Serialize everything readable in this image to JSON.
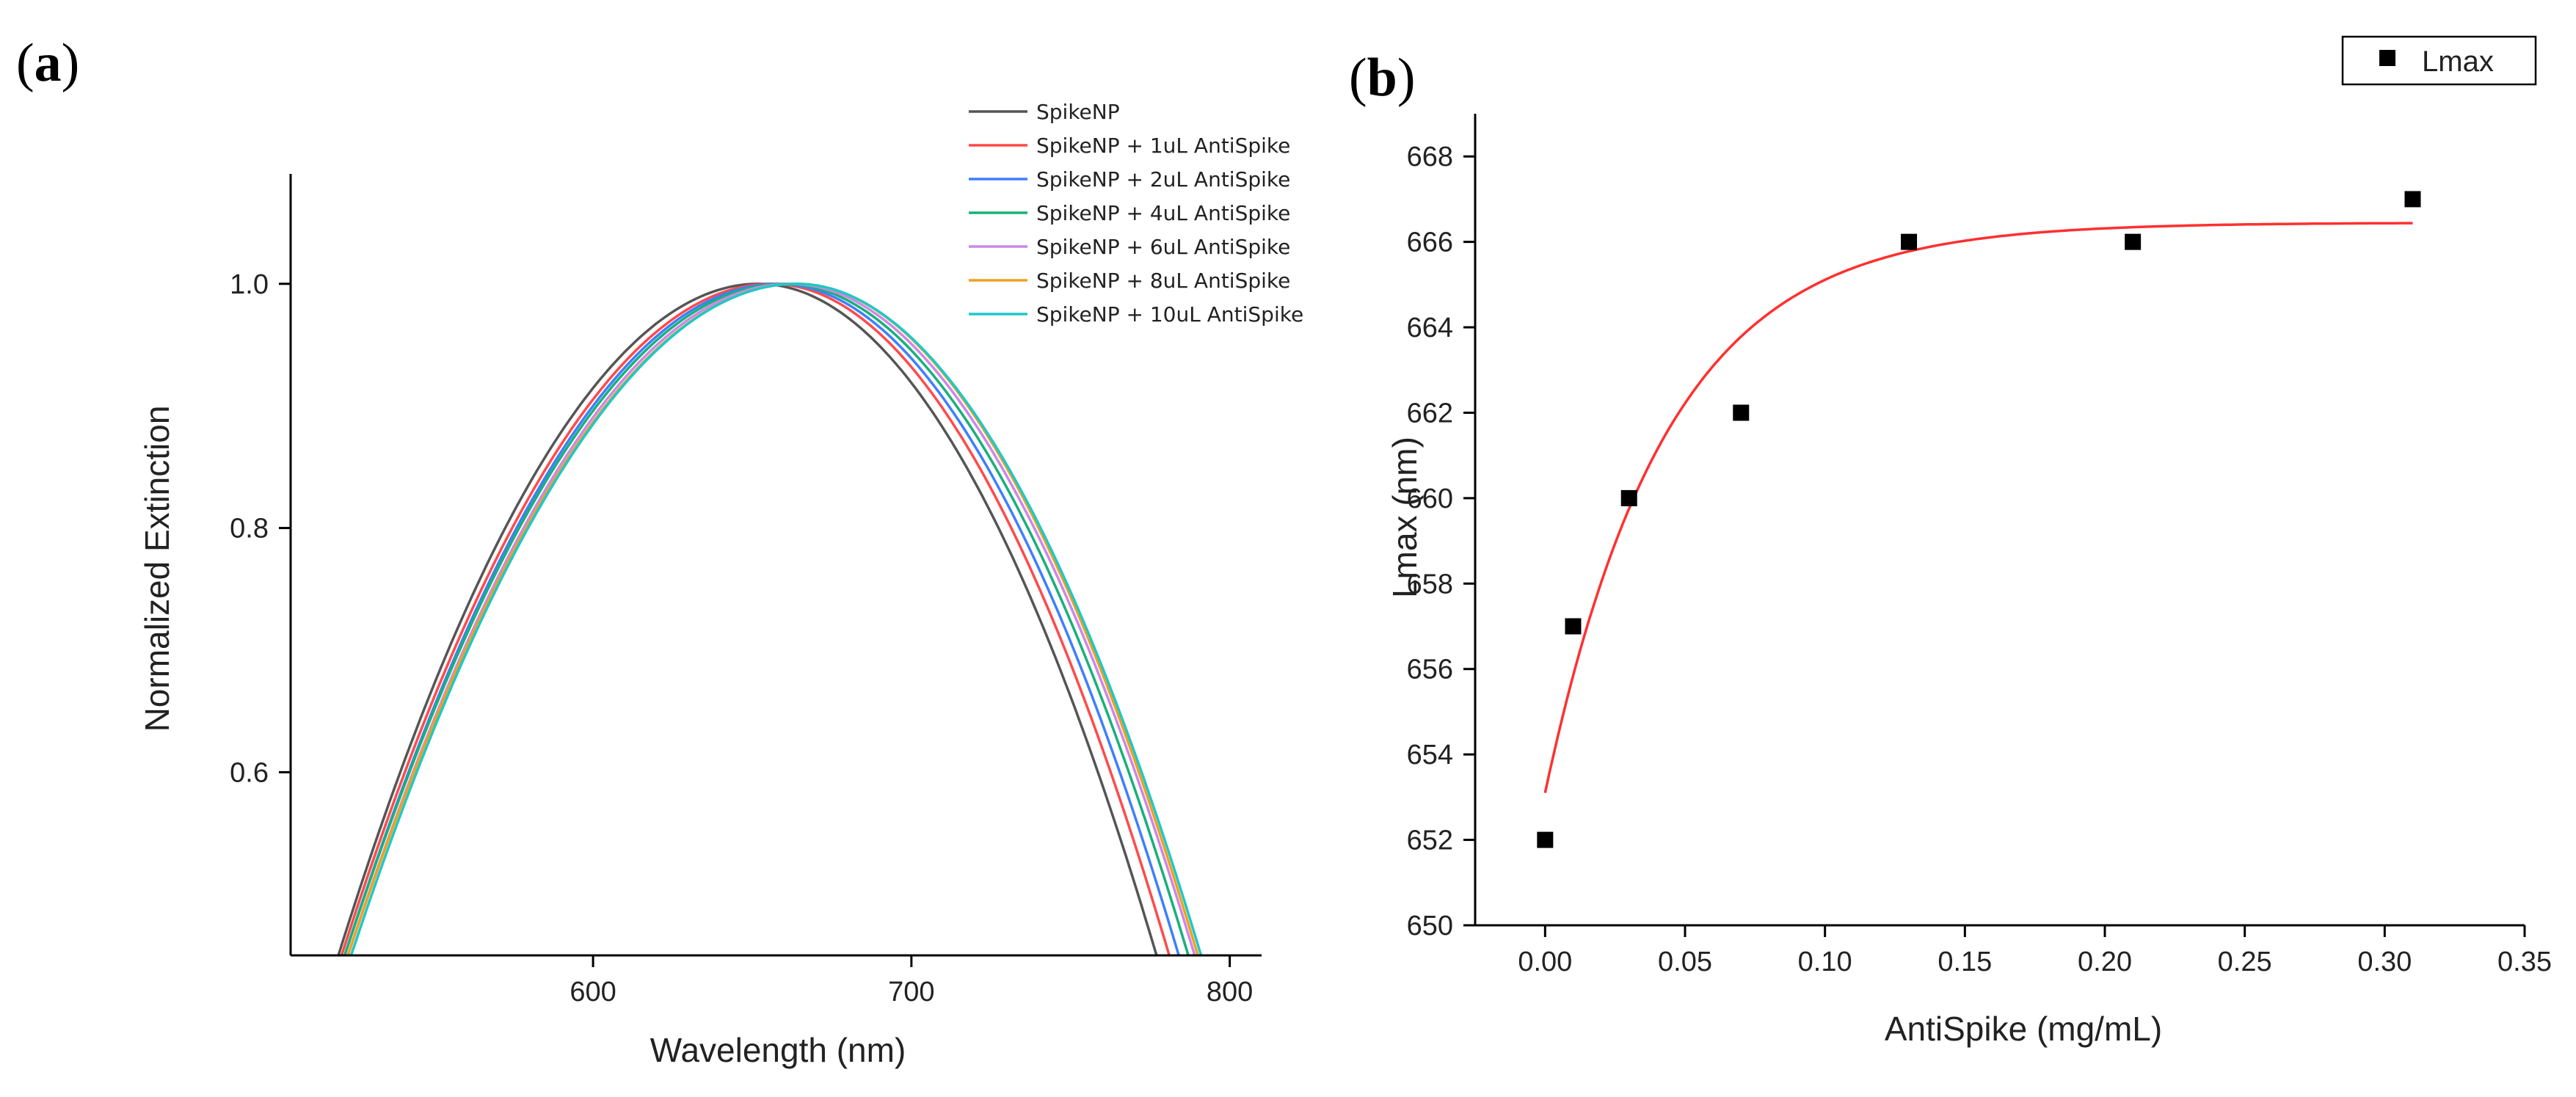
{
  "chart_data": [
    {
      "panel_label": "a",
      "type": "line",
      "title": "",
      "xlabel": "Wavelength (nm)",
      "ylabel": "Normalized Extinction",
      "xlim": [
        505,
        810
      ],
      "ylim": [
        0.45,
        1.09
      ],
      "xticks": [
        600,
        700,
        800
      ],
      "yticks": [
        0.6,
        0.8,
        1.0
      ],
      "xtick_labels": [
        "600",
        "700",
        "800"
      ],
      "ytick_labels": [
        "0.6",
        "0.8",
        "1.0"
      ],
      "legend_position": "top-right",
      "series": [
        {
          "name": "SpikeNP",
          "color": "#555555",
          "peak": 652,
          "left_at_0_45": 520,
          "right_at_0_45": 777
        },
        {
          "name": "SpikeNP + 1uL AntiSpike",
          "color": "#ff4a4a",
          "peak": 656,
          "left_at_0_45": 521,
          "right_at_0_45": 781
        },
        {
          "name": "SpikeNP + 2uL AntiSpike",
          "color": "#3d7fff",
          "peak": 658,
          "left_at_0_45": 522,
          "right_at_0_45": 784
        },
        {
          "name": "SpikeNP + 4uL AntiSpike",
          "color": "#19b07a",
          "peak": 660,
          "left_at_0_45": 522,
          "right_at_0_45": 787
        },
        {
          "name": "SpikeNP + 6uL AntiSpike",
          "color": "#cc88e8",
          "peak": 662,
          "left_at_0_45": 523,
          "right_at_0_45": 789
        },
        {
          "name": "SpikeNP + 8uL AntiSpike",
          "color": "#f0a020",
          "peak": 664,
          "left_at_0_45": 523,
          "right_at_0_45": 790
        },
        {
          "name": "SpikeNP + 10uL AntiSpike",
          "color": "#1ec8c8",
          "peak": 664,
          "left_at_0_45": 524,
          "right_at_0_45": 791
        }
      ]
    },
    {
      "panel_label": "b",
      "type": "scatter",
      "title": "",
      "xlabel": "AntiSpike (mg/mL)",
      "ylabel": "Lmax (nm)",
      "xlim": [
        -0.025,
        0.35
      ],
      "ylim": [
        650,
        669
      ],
      "xticks": [
        0,
        0.05,
        0.1,
        0.15,
        0.2,
        0.25,
        0.3,
        0.35
      ],
      "yticks": [
        650,
        652,
        654,
        656,
        658,
        660,
        662,
        664,
        666,
        668
      ],
      "xtick_labels": [
        "0.00",
        "0.05",
        "0.10",
        "0.15",
        "0.20",
        "0.25",
        "0.30",
        "0.35"
      ],
      "ytick_labels": [
        "650",
        "652",
        "654",
        "656",
        "658",
        "660",
        "662",
        "664",
        "666",
        "668"
      ],
      "legend_position": "top-right",
      "series": [
        {
          "name": "Lmax",
          "marker": "square",
          "color": "#000000",
          "x": [
            0.0,
            0.01,
            0.03,
            0.07,
            0.13,
            0.21,
            0.31
          ],
          "y": [
            652,
            657,
            660,
            662,
            666,
            666,
            667
          ]
        }
      ],
      "fit": {
        "color": "#ff3030",
        "x_range": [
          0.0,
          0.31
        ],
        "y0": 653.1,
        "plateau": 666.45,
        "rate": 23
      }
    }
  ]
}
